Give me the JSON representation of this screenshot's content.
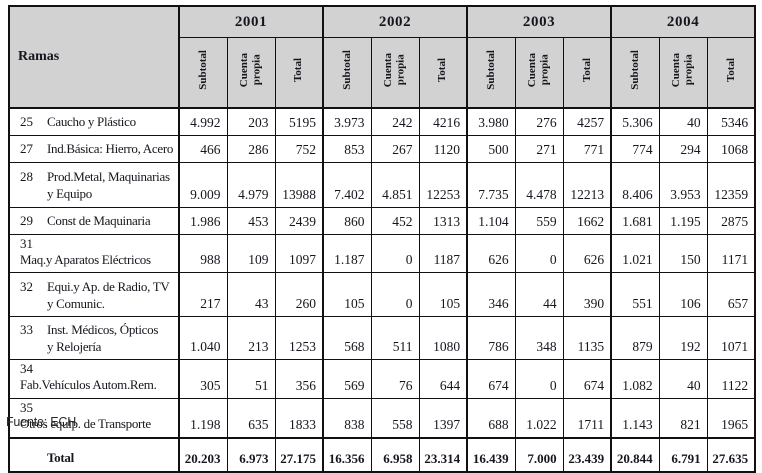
{
  "table": {
    "ramas_header": "Ramas",
    "years": [
      "2001",
      "2002",
      "2003",
      "2004"
    ],
    "sub_headers": [
      "Subtotal",
      "Cuenta propia",
      "Total"
    ],
    "rows": [
      {
        "code": "25",
        "name": "Caucho y Plástico",
        "values": [
          "4.992",
          "203",
          "5195",
          "3.973",
          "242",
          "4216",
          "3.980",
          "276",
          "4257",
          "5.306",
          "40",
          "5346"
        ]
      },
      {
        "code": "27",
        "name": "Ind.Básica: Hierro, Acero",
        "values": [
          "466",
          "286",
          "752",
          "853",
          "267",
          "1120",
          "500",
          "271",
          "771",
          "774",
          "294",
          "1068"
        ]
      },
      {
        "code": "28",
        "name": "Prod.Metal, Maquinarias\ny Equipo",
        "values": [
          "9.009",
          "4.979",
          "13988",
          "7.402",
          "4.851",
          "12253",
          "7.735",
          "4.478",
          "12213",
          "8.406",
          "3.953",
          "12359"
        ]
      },
      {
        "code": "29",
        "name": "Const de Maquinaria",
        "values": [
          "1.986",
          "453",
          "2439",
          "860",
          "452",
          "1313",
          "1.104",
          "559",
          "1662",
          "1.681",
          "1.195",
          "2875"
        ]
      },
      {
        "code": "31",
        "name": "Maq.y Aparatos Eléctricos",
        "values": [
          "988",
          "109",
          "1097",
          "1.187",
          "0",
          "1187",
          "626",
          "0",
          "626",
          "1.021",
          "150",
          "1171"
        ]
      },
      {
        "code": "32",
        "name": "Equi.y Ap. de Radio, TV\ny Comunic.",
        "values": [
          "217",
          "43",
          "260",
          "105",
          "0",
          "105",
          "346",
          "44",
          "390",
          "551",
          "106",
          "657"
        ]
      },
      {
        "code": "33",
        "name": "Inst. Médicos, Ópticos\ny Relojería",
        "values": [
          "1.040",
          "213",
          "1253",
          "568",
          "511",
          "1080",
          "786",
          "348",
          "1135",
          "879",
          "192",
          "1071"
        ]
      },
      {
        "code": "34",
        "name": "Fab.Vehículos Autom.Rem.",
        "values": [
          "305",
          "51",
          "356",
          "569",
          "76",
          "644",
          "674",
          "0",
          "674",
          "1.082",
          "40",
          "1122"
        ]
      },
      {
        "code": "35",
        "name": "Otros equip. de Transporte",
        "values": [
          "1.198",
          "635",
          "1833",
          "838",
          "558",
          "1397",
          "688",
          "1.022",
          "1711",
          "1.143",
          "821",
          "1965"
        ]
      }
    ],
    "total_row": {
      "label": "Total",
      "values": [
        "20.203",
        "6.973",
        "27.175",
        "16.356",
        "6.958",
        "23.314",
        "16.439",
        "7.000",
        "23.439",
        "20.844",
        "6.791",
        "27.635"
      ]
    }
  },
  "footer": {
    "source": "Fuente: ECH"
  },
  "colors": {
    "header_bg": "#d2d2d2",
    "border": "#111111",
    "text": "#16161e",
    "page_bg": "#ffffff"
  }
}
